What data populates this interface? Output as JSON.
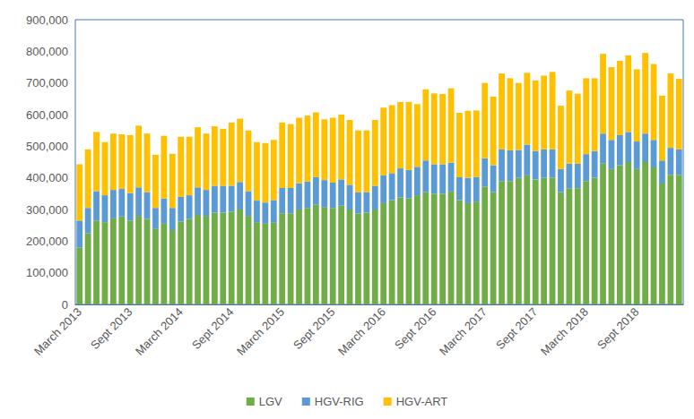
{
  "chart_data": {
    "type": "bar",
    "stacked": true,
    "grid": false,
    "legend": "bottom",
    "categories": [
      "March 2013",
      null,
      null,
      null,
      null,
      null,
      "Sept 2013",
      null,
      null,
      null,
      null,
      null,
      "March 2014",
      null,
      null,
      null,
      null,
      null,
      "Sept 2014",
      null,
      null,
      null,
      null,
      null,
      "March 2015",
      null,
      null,
      null,
      null,
      null,
      "Sept 2015",
      null,
      null,
      null,
      null,
      null,
      "March 2016",
      null,
      null,
      null,
      null,
      null,
      "Sept 2016",
      null,
      null,
      null,
      null,
      null,
      "March 2017",
      null,
      null,
      null,
      null,
      null,
      "Sept 2017",
      null,
      null,
      null,
      null,
      null,
      "March 2018",
      null,
      null,
      null,
      null,
      null,
      "Sept 2018",
      null,
      null,
      null,
      null,
      null
    ],
    "series": [
      {
        "name": "LGV",
        "color": "#70ad47",
        "values": [
          180000,
          225000,
          265000,
          260000,
          272000,
          278000,
          265000,
          280000,
          270000,
          240000,
          255000,
          235000,
          262000,
          270000,
          283000,
          280000,
          290000,
          290000,
          293000,
          300000,
          280000,
          260000,
          255000,
          258000,
          288000,
          288000,
          300000,
          305000,
          315000,
          308000,
          305000,
          312000,
          300000,
          287000,
          290000,
          300000,
          320000,
          330000,
          338000,
          335000,
          345000,
          355000,
          350000,
          350000,
          357000,
          330000,
          320000,
          325000,
          372000,
          355000,
          390000,
          390000,
          400000,
          408000,
          395000,
          400000,
          400000,
          355000,
          367000,
          367000,
          390000,
          400000,
          445000,
          428000,
          440000,
          450000,
          428000,
          450000,
          433000,
          382000,
          410000,
          410000
        ]
      },
      {
        "name": "HGV-RIG",
        "color": "#5b9bd5",
        "values": [
          85000,
          80000,
          93000,
          85000,
          90000,
          87000,
          87000,
          90000,
          85000,
          65000,
          80000,
          70000,
          78000,
          75000,
          87000,
          82000,
          85000,
          85000,
          82000,
          87000,
          78000,
          68000,
          67000,
          72000,
          80000,
          80000,
          83000,
          83000,
          87000,
          85000,
          80000,
          83000,
          78000,
          68000,
          65000,
          75000,
          88000,
          85000,
          92000,
          90000,
          90000,
          100000,
          93000,
          93000,
          91000,
          72000,
          80000,
          78000,
          90000,
          85000,
          100000,
          97000,
          88000,
          97000,
          90000,
          90000,
          90000,
          73000,
          78000,
          78000,
          85000,
          85000,
          95000,
          92000,
          95000,
          95000,
          87000,
          90000,
          87000,
          73000,
          85000,
          80000
        ]
      },
      {
        "name": "HGV-ART",
        "color": "#ffc000",
        "values": [
          178000,
          185000,
          187000,
          168000,
          178000,
          173000,
          183000,
          195000,
          185000,
          168000,
          198000,
          171000,
          190000,
          185000,
          190000,
          178000,
          188000,
          180000,
          200000,
          200000,
          192000,
          185000,
          188000,
          190000,
          207000,
          202000,
          207000,
          209000,
          205000,
          192000,
          205000,
          205000,
          205000,
          195000,
          195000,
          208000,
          214000,
          215000,
          210000,
          215000,
          198000,
          225000,
          224000,
          222000,
          235000,
          204000,
          212000,
          210000,
          238000,
          217000,
          240000,
          228000,
          212000,
          227000,
          223000,
          233000,
          245000,
          200000,
          231000,
          221000,
          240000,
          230000,
          252000,
          230000,
          235000,
          242000,
          228000,
          255000,
          240000,
          205000,
          235000,
          223000
        ]
      }
    ],
    "ylim": [
      0,
      900000
    ],
    "yticks": [
      0,
      {
        "value": 100000,
        "label": "100,000"
      },
      {
        "value": 200000,
        "label": "200,000"
      },
      {
        "value": 300000,
        "label": "300,000"
      },
      {
        "value": 400000,
        "label": "400,000"
      },
      {
        "value": 500000,
        "label": "500,000"
      },
      {
        "value": 600000,
        "label": "600,000"
      },
      {
        "value": 700000,
        "label": "700,000"
      },
      {
        "value": 800000,
        "label": "800,000"
      },
      {
        "value": 900000,
        "label": "900,000"
      }
    ]
  }
}
